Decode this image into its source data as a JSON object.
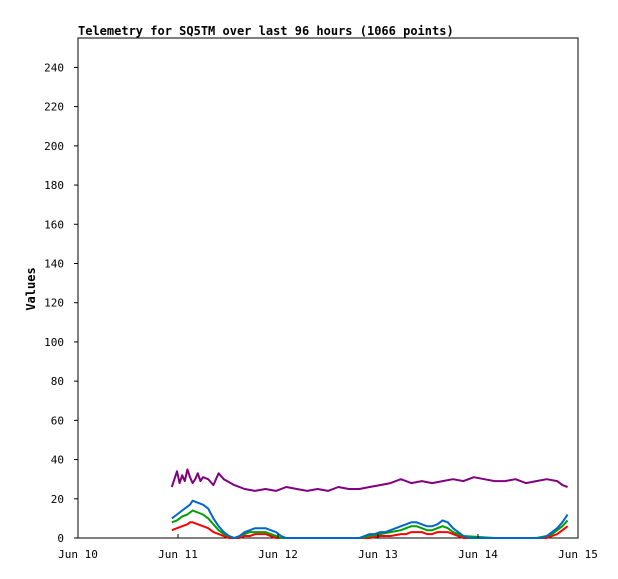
{
  "chart_data": {
    "type": "line",
    "title": "Telemetry for SQ5TM over last 96 hours (1066 points)",
    "xlabel": "",
    "ylabel": "Values",
    "x_ticks": [
      "Jun 10",
      "Jun 11",
      "Jun 12",
      "Jun 13",
      "Jun 14",
      "Jun 15"
    ],
    "y_ticks": [
      0,
      20,
      40,
      60,
      80,
      100,
      120,
      140,
      160,
      180,
      200,
      220,
      240
    ],
    "xlim_hours": [
      0,
      96
    ],
    "ylim": [
      0,
      255
    ],
    "grid": false,
    "series": [
      {
        "color": "#800080",
        "x": [
          18.0,
          18.5,
          19.0,
          19.5,
          20.0,
          20.5,
          21.0,
          21.5,
          22.0,
          22.5,
          23.0,
          23.5,
          24.0,
          25.0,
          26.0,
          27.0,
          28.0,
          30.0,
          32.0,
          34.0,
          36.0,
          38.0,
          40.0,
          42.0,
          44.0,
          46.0,
          48.0,
          50.0,
          52.0,
          54.0,
          56.0,
          58.0,
          60.0,
          62.0,
          64.0,
          66.0,
          68.0,
          70.0,
          72.0,
          74.0,
          76.0,
          78.0,
          80.0,
          82.0,
          84.0,
          86.0,
          88.0,
          90.0,
          92.0,
          93.0,
          94.0
        ],
        "values": [
          26,
          30,
          34,
          28,
          32,
          29,
          35,
          31,
          28,
          30,
          33,
          29,
          31,
          30,
          27,
          33,
          30,
          27,
          25,
          24,
          25,
          24,
          26,
          25,
          24,
          25,
          24,
          26,
          25,
          25,
          26,
          27,
          28,
          30,
          28,
          29,
          28,
          29,
          30,
          29,
          31,
          30,
          29,
          29,
          30,
          28,
          29,
          30,
          29,
          27,
          26
        ]
      },
      {
        "color": "#0066cc",
        "x": [
          18.0,
          19.0,
          20.0,
          21.0,
          21.5,
          22.0,
          23.0,
          24.0,
          25.0,
          26.0,
          27.0,
          28.0,
          29.0,
          30.0,
          31.0,
          32.0,
          33.0,
          34.0,
          35.0,
          36.0,
          37.0,
          38.0,
          39.0,
          40.0,
          41.0,
          42.0,
          48.0,
          54.0,
          55.0,
          56.0,
          57.0,
          58.0,
          59.0,
          60.0,
          61.0,
          62.0,
          63.0,
          64.0,
          65.0,
          66.0,
          67.0,
          68.0,
          69.0,
          70.0,
          71.0,
          72.0,
          73.0,
          74.0,
          75.0,
          76.0,
          77.0,
          78.0,
          79.0,
          80.0,
          81.0,
          82.0,
          83.0,
          84.0,
          85.0,
          86.0,
          87.0,
          88.0,
          89.0,
          90.0,
          91.0,
          92.0,
          93.0,
          94.0
        ],
        "values": [
          10,
          12,
          14,
          16,
          17,
          19,
          18,
          17,
          15,
          10,
          6,
          3,
          1,
          0,
          1,
          3,
          4,
          5,
          5,
          5,
          4,
          3,
          1,
          0,
          0,
          0,
          0,
          0,
          1,
          2,
          2,
          3,
          3,
          4,
          5,
          6,
          7,
          8,
          8,
          7,
          6,
          6,
          7,
          9,
          8,
          5,
          3,
          1,
          0,
          0,
          0,
          0,
          0,
          0,
          0,
          0,
          0,
          0,
          0,
          0,
          0,
          0,
          0,
          1,
          3,
          5,
          8,
          12
        ]
      },
      {
        "color": "#00a000",
        "x": [
          18.0,
          19.0,
          20.0,
          21.0,
          21.5,
          22.0,
          23.0,
          24.0,
          25.0,
          26.0,
          27.0,
          28.0,
          29.0,
          30.0,
          31.0,
          32.0,
          33.0,
          34.0,
          35.0,
          36.0,
          37.0,
          38.0,
          39.0,
          40.0,
          48.0,
          54.0,
          56.0,
          58.0,
          60.0,
          62.0,
          63.0,
          64.0,
          65.0,
          66.0,
          67.0,
          68.0,
          69.0,
          70.0,
          71.0,
          72.0,
          73.0,
          74.0,
          80.0,
          88.0,
          90.0,
          91.0,
          92.0,
          93.0,
          94.0
        ],
        "values": [
          8,
          9,
          11,
          12,
          13,
          14,
          13,
          12,
          10,
          7,
          4,
          2,
          1,
          0,
          1,
          2,
          3,
          3,
          3,
          3,
          2,
          1,
          0,
          0,
          0,
          0,
          1,
          2,
          3,
          4,
          5,
          6,
          6,
          5,
          4,
          4,
          5,
          6,
          5,
          3,
          2,
          1,
          0,
          0,
          1,
          2,
          4,
          6,
          9
        ]
      },
      {
        "color": "#ff0000",
        "x": [
          18.0,
          19.0,
          20.0,
          21.0,
          21.5,
          22.0,
          23.0,
          24.0,
          25.0,
          26.0,
          27.0,
          28.0,
          29.0,
          30.0,
          31.0,
          32.0,
          33.0,
          34.0,
          35.0,
          36.0,
          37.0,
          38.0,
          39.0,
          40.0,
          48.0,
          54.0,
          56.0,
          58.0,
          60.0,
          62.0,
          63.0,
          64.0,
          65.0,
          66.0,
          67.0,
          68.0,
          69.0,
          70.0,
          71.0,
          72.0,
          73.0,
          74.0,
          80.0,
          88.0,
          90.0,
          91.0,
          92.0,
          93.0,
          94.0
        ],
        "values": [
          4,
          5,
          6,
          7,
          8,
          8,
          7,
          6,
          5,
          3,
          2,
          1,
          0,
          0,
          0,
          1,
          1,
          2,
          2,
          2,
          1,
          0,
          0,
          0,
          0,
          0,
          0,
          1,
          1,
          2,
          2,
          3,
          3,
          3,
          2,
          2,
          3,
          3,
          3,
          2,
          1,
          0,
          0,
          0,
          0,
          1,
          2,
          4,
          6
        ]
      }
    ]
  }
}
